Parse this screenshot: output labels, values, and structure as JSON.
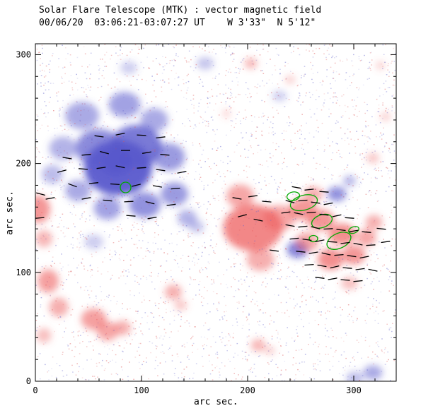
{
  "chart_data": {
    "type": "heatmap",
    "title": "Solar Flare Telescope (MTK) : vector magnetic field",
    "subtitle": "00/06/20  03:06:21-03:07:27 UT    W 3'33\"  N 5'12\"",
    "xlabel": "arc sec.",
    "ylabel": "arc sec.",
    "xlim": [
      0,
      340
    ],
    "ylim": [
      0,
      310
    ],
    "xticks": [
      0,
      100,
      200,
      300
    ],
    "yticks": [
      0,
      100,
      200,
      300
    ],
    "minor_step": 20,
    "grid": false,
    "legend": "none",
    "colors": {
      "negative": "#5858cc",
      "positive": "#ee5f5f",
      "noise_negative": "#6666cc",
      "noise_positive": "#dd5555",
      "contour": "#00a800",
      "vector": "#000000",
      "axis": "#000000"
    },
    "noise": {
      "count": 3200,
      "seed": 7,
      "alpha_min": 0.12,
      "alpha_max": 0.5
    },
    "blobs": [
      [
        78,
        196,
        32,
        26,
        0.95,
        "n"
      ],
      [
        76,
        201,
        15,
        12,
        1.0,
        "n"
      ],
      [
        95,
        216,
        24,
        20,
        0.8,
        "n"
      ],
      [
        60,
        214,
        22,
        18,
        0.7,
        "n"
      ],
      [
        44,
        244,
        16,
        13,
        0.5,
        "n"
      ],
      [
        84,
        254,
        15,
        12,
        0.55,
        "n"
      ],
      [
        112,
        240,
        13,
        11,
        0.5,
        "n"
      ],
      [
        126,
        206,
        15,
        13,
        0.6,
        "n"
      ],
      [
        131,
        172,
        13,
        11,
        0.6,
        "n"
      ],
      [
        103,
        162,
        15,
        12,
        0.65,
        "n"
      ],
      [
        68,
        159,
        13,
        11,
        0.55,
        "n"
      ],
      [
        26,
        214,
        13,
        11,
        0.45,
        "n"
      ],
      [
        16,
        190,
        10,
        9,
        0.4,
        "n"
      ],
      [
        40,
        175,
        12,
        10,
        0.5,
        "n"
      ],
      [
        143,
        150,
        9,
        8,
        0.45,
        "n"
      ],
      [
        152,
        142,
        7,
        6,
        0.35,
        "n"
      ],
      [
        55,
        128,
        9,
        7,
        0.3,
        "n"
      ],
      [
        88,
        288,
        8,
        6,
        0.3,
        "n"
      ],
      [
        160,
        292,
        8,
        6,
        0.35,
        "n"
      ],
      [
        230,
        262,
        7,
        5,
        0.3,
        "n"
      ],
      [
        247,
        121,
        10,
        8,
        0.75,
        "n"
      ],
      [
        284,
        172,
        9,
        7,
        0.65,
        "n"
      ],
      [
        296,
        184,
        6,
        5,
        0.45,
        "n"
      ],
      [
        318,
        8,
        9,
        7,
        0.5,
        "n"
      ],
      [
        301,
        3,
        8,
        6,
        0.4,
        "n"
      ],
      [
        205,
        141,
        28,
        22,
        0.75,
        "p"
      ],
      [
        193,
        170,
        13,
        11,
        0.55,
        "p"
      ],
      [
        212,
        112,
        13,
        11,
        0.5,
        "p"
      ],
      [
        230,
        150,
        15,
        12,
        0.55,
        "p"
      ],
      [
        252,
        158,
        13,
        10,
        0.65,
        "p"
      ],
      [
        262,
        172,
        9,
        7,
        0.5,
        "p"
      ],
      [
        269,
        148,
        13,
        10,
        0.65,
        "p"
      ],
      [
        289,
        135,
        13,
        10,
        0.7,
        "p"
      ],
      [
        300,
        116,
        11,
        9,
        0.65,
        "p"
      ],
      [
        278,
        112,
        12,
        10,
        0.7,
        "p"
      ],
      [
        256,
        128,
        11,
        9,
        0.55,
        "p"
      ],
      [
        312,
        132,
        9,
        8,
        0.55,
        "p"
      ],
      [
        319,
        146,
        8,
        7,
        0.5,
        "p"
      ],
      [
        296,
        90,
        8,
        6,
        0.4,
        "p"
      ],
      [
        3,
        158,
        11,
        13,
        0.65,
        "p"
      ],
      [
        8,
        131,
        8,
        8,
        0.45,
        "p"
      ],
      [
        12,
        92,
        10,
        11,
        0.6,
        "p"
      ],
      [
        22,
        68,
        9,
        9,
        0.5,
        "p"
      ],
      [
        8,
        42,
        7,
        7,
        0.4,
        "p"
      ],
      [
        55,
        57,
        12,
        10,
        0.6,
        "p"
      ],
      [
        68,
        46,
        10,
        9,
        0.55,
        "p"
      ],
      [
        82,
        49,
        8,
        7,
        0.5,
        "p"
      ],
      [
        130,
        82,
        8,
        7,
        0.5,
        "p"
      ],
      [
        137,
        70,
        6,
        5,
        0.35,
        "p"
      ],
      [
        210,
        33,
        7,
        6,
        0.45,
        "p"
      ],
      [
        221,
        28,
        5,
        4,
        0.3,
        "p"
      ],
      [
        203,
        292,
        6,
        5,
        0.45,
        "p"
      ],
      [
        240,
        277,
        5,
        4,
        0.3,
        "p"
      ],
      [
        318,
        205,
        6,
        5,
        0.35,
        "p"
      ],
      [
        330,
        243,
        5,
        4,
        0.3,
        "p"
      ],
      [
        325,
        290,
        4,
        4,
        0.3,
        "p"
      ],
      [
        180,
        246,
        4,
        4,
        0.25,
        "p"
      ]
    ],
    "vectors": [
      [
        30,
        205,
        -10
      ],
      [
        48,
        208,
        5
      ],
      [
        65,
        210,
        -15
      ],
      [
        85,
        212,
        0
      ],
      [
        105,
        210,
        10
      ],
      [
        122,
        208,
        -5
      ],
      [
        25,
        193,
        15
      ],
      [
        45,
        195,
        -5
      ],
      [
        62,
        196,
        8
      ],
      [
        80,
        197,
        -12
      ],
      [
        100,
        196,
        4
      ],
      [
        118,
        194,
        -8
      ],
      [
        138,
        192,
        12
      ],
      [
        35,
        180,
        -20
      ],
      [
        55,
        182,
        6
      ],
      [
        75,
        181,
        -4
      ],
      [
        95,
        180,
        14
      ],
      [
        115,
        179,
        -10
      ],
      [
        132,
        177,
        5
      ],
      [
        48,
        168,
        10
      ],
      [
        68,
        166,
        -6
      ],
      [
        88,
        165,
        3
      ],
      [
        108,
        164,
        -14
      ],
      [
        128,
        162,
        8
      ],
      [
        60,
        225,
        -8
      ],
      [
        80,
        227,
        12
      ],
      [
        100,
        226,
        -3
      ],
      [
        118,
        224,
        7
      ],
      [
        90,
        152,
        -5
      ],
      [
        110,
        150,
        10
      ],
      [
        5,
        172,
        -15
      ],
      [
        14,
        168,
        10
      ],
      [
        4,
        150,
        5
      ],
      [
        190,
        168,
        -10
      ],
      [
        205,
        170,
        8
      ],
      [
        218,
        165,
        -5
      ],
      [
        195,
        152,
        15
      ],
      [
        210,
        148,
        -12
      ],
      [
        240,
        165,
        -15
      ],
      [
        252,
        166,
        5
      ],
      [
        264,
        164,
        -8
      ],
      [
        276,
        163,
        10
      ],
      [
        246,
        178,
        -10
      ],
      [
        258,
        176,
        6
      ],
      [
        272,
        174,
        -4
      ],
      [
        236,
        155,
        8
      ],
      [
        248,
        154,
        -12
      ],
      [
        260,
        155,
        4
      ],
      [
        272,
        153,
        -6
      ],
      [
        284,
        152,
        12
      ],
      [
        296,
        150,
        -4
      ],
      [
        240,
        143,
        -10
      ],
      [
        252,
        142,
        6
      ],
      [
        264,
        141,
        -14
      ],
      [
        276,
        140,
        3
      ],
      [
        288,
        139,
        -7
      ],
      [
        300,
        138,
        10
      ],
      [
        312,
        137,
        -5
      ],
      [
        244,
        131,
        5
      ],
      [
        256,
        130,
        -8
      ],
      [
        268,
        129,
        12
      ],
      [
        280,
        128,
        -4
      ],
      [
        292,
        127,
        7
      ],
      [
        304,
        126,
        -11
      ],
      [
        316,
        125,
        4
      ],
      [
        250,
        119,
        -6
      ],
      [
        262,
        118,
        9
      ],
      [
        274,
        117,
        -13
      ],
      [
        286,
        116,
        5
      ],
      [
        298,
        115,
        -8
      ],
      [
        310,
        114,
        11
      ],
      [
        258,
        107,
        4
      ],
      [
        270,
        106,
        -9
      ],
      [
        282,
        105,
        13
      ],
      [
        294,
        104,
        -5
      ],
      [
        306,
        103,
        8
      ],
      [
        318,
        102,
        -12
      ],
      [
        268,
        95,
        -7
      ],
      [
        280,
        94,
        10
      ],
      [
        292,
        93,
        -4
      ],
      [
        304,
        92,
        6
      ],
      [
        326,
        140,
        -6
      ],
      [
        330,
        128,
        8
      ],
      [
        225,
        120,
        -8
      ]
    ],
    "contours": [
      [
        85,
        178,
        5,
        5,
        0
      ],
      [
        253,
        164,
        13,
        7,
        -15
      ],
      [
        270,
        147,
        10,
        6,
        -20
      ],
      [
        286,
        129,
        12,
        7,
        -25
      ],
      [
        300,
        139,
        5,
        3,
        -20
      ],
      [
        262,
        131,
        4,
        3,
        0
      ],
      [
        243,
        170,
        6,
        4,
        -10
      ]
    ]
  }
}
